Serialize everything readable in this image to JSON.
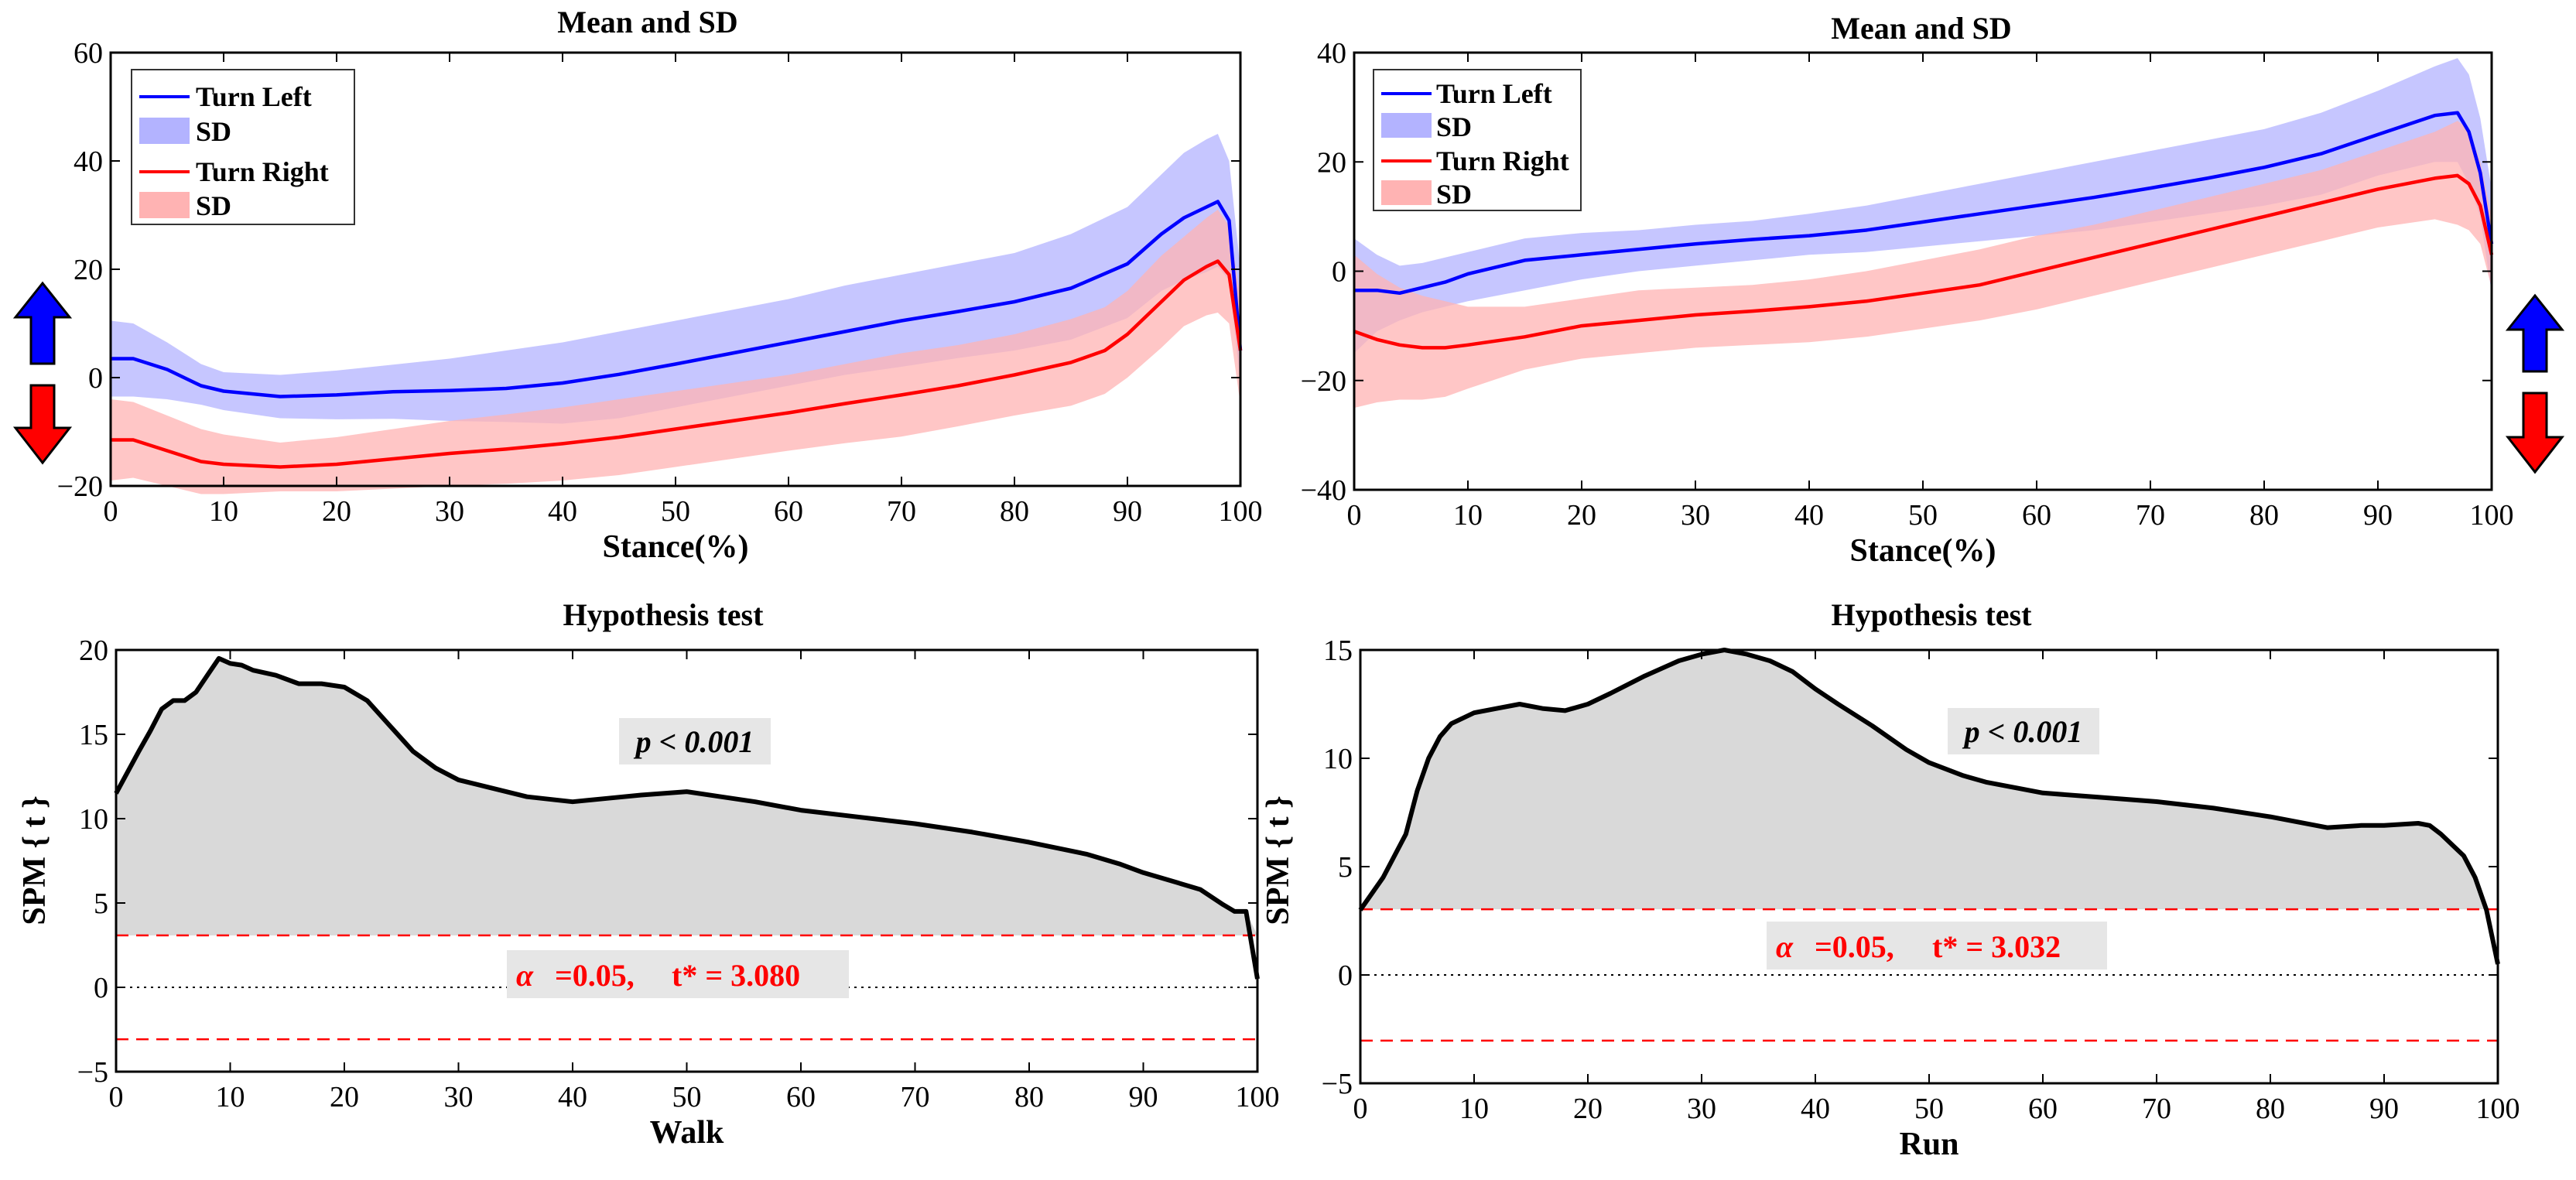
{
  "chart_data": [
    {
      "type": "line",
      "title": "Mean and SD",
      "xlabel": "Stance(%)",
      "ylabel": "",
      "xlim": [
        0,
        100
      ],
      "ylim": [
        -20,
        60
      ],
      "xticks": [
        0,
        10,
        20,
        30,
        40,
        50,
        60,
        70,
        80,
        90,
        100
      ],
      "yticks": [
        -20,
        0,
        20,
        40,
        60
      ],
      "legend": [
        "Turn Left",
        "SD",
        "Turn Right",
        "SD"
      ],
      "legend_position": "top-left",
      "direction_arrows": "left",
      "series": [
        {
          "name": "Turn Left",
          "color": "#0000ff",
          "band_color": "#b3b3ff",
          "x": [
            0,
            2,
            5,
            8,
            10,
            15,
            20,
            25,
            30,
            35,
            40,
            45,
            50,
            55,
            60,
            65,
            70,
            75,
            80,
            85,
            90,
            93,
            95,
            97,
            98,
            99,
            100
          ],
          "mean": [
            3.5,
            3.5,
            1.5,
            -1.5,
            -2.5,
            -3.5,
            -3.2,
            -2.6,
            -2.4,
            -2.0,
            -1.0,
            0.6,
            2.5,
            4.5,
            6.5,
            8.5,
            10.5,
            12.2,
            14.0,
            16.5,
            21.0,
            26.5,
            29.5,
            31.5,
            32.5,
            29.0,
            5.0
          ],
          "sd_upper": [
            10.5,
            10.0,
            6.5,
            2.5,
            1.0,
            0.5,
            1.3,
            2.4,
            3.5,
            5.0,
            6.5,
            8.5,
            10.5,
            12.5,
            14.5,
            17.0,
            19.0,
            21.0,
            23.0,
            26.5,
            31.5,
            37.5,
            41.5,
            44.0,
            45.0,
            40.0,
            20.0
          ],
          "sd_lower": [
            -3.5,
            -3.5,
            -4.0,
            -5.0,
            -6.0,
            -7.5,
            -7.7,
            -7.6,
            -8.0,
            -8.2,
            -8.5,
            -7.5,
            -5.5,
            -3.5,
            -1.5,
            0.5,
            2.0,
            3.6,
            5.0,
            7.0,
            11.0,
            16.0,
            18.0,
            19.5,
            20.5,
            18.0,
            -1.0
          ]
        },
        {
          "name": "Turn Right",
          "color": "#ff0000",
          "band_color": "#ffb3b3",
          "x": [
            0,
            2,
            5,
            8,
            10,
            15,
            20,
            25,
            30,
            35,
            40,
            45,
            50,
            55,
            60,
            65,
            70,
            75,
            80,
            85,
            88,
            90,
            93,
            95,
            97,
            98,
            99,
            100
          ],
          "mean": [
            -11.5,
            -11.5,
            -13.5,
            -15.5,
            -16.0,
            -16.5,
            -16.0,
            -15.0,
            -14.0,
            -13.2,
            -12.2,
            -11.0,
            -9.5,
            -8.0,
            -6.5,
            -4.8,
            -3.2,
            -1.5,
            0.5,
            2.8,
            5.0,
            8.0,
            14.0,
            18.0,
            20.5,
            21.5,
            19.0,
            5.0
          ],
          "sd_upper": [
            -4.0,
            -4.5,
            -7.0,
            -9.5,
            -10.5,
            -12.0,
            -11.0,
            -9.5,
            -8.0,
            -6.8,
            -5.5,
            -4.0,
            -2.5,
            -1.0,
            0.5,
            2.5,
            4.5,
            6.0,
            8.0,
            10.8,
            13.0,
            16.0,
            22.5,
            26.0,
            29.5,
            31.0,
            28.0,
            15.0
          ],
          "sd_lower": [
            -19.0,
            -18.5,
            -20.0,
            -21.5,
            -21.5,
            -21.0,
            -21.0,
            -20.5,
            -20.0,
            -19.6,
            -19.0,
            -18.0,
            -16.5,
            -15.0,
            -13.5,
            -12.1,
            -10.9,
            -9.0,
            -7.0,
            -5.2,
            -3.0,
            0.0,
            5.5,
            9.5,
            11.5,
            12.0,
            10.0,
            -5.0
          ]
        }
      ]
    },
    {
      "type": "line",
      "title": "Mean and SD",
      "xlabel": "Stance(%)",
      "ylabel": "",
      "xlim": [
        0,
        100
      ],
      "ylim": [
        -40,
        40
      ],
      "xticks": [
        0,
        10,
        20,
        30,
        40,
        50,
        60,
        70,
        80,
        90,
        100
      ],
      "yticks": [
        -40,
        -20,
        0,
        20,
        40
      ],
      "legend": [
        "Turn Left",
        "SD",
        "Turn Right",
        "SD"
      ],
      "legend_position": "top-left",
      "direction_arrows": "right",
      "series": [
        {
          "name": "Turn Left",
          "color": "#0000ff",
          "band_color": "#b3b3ff",
          "x": [
            0,
            2,
            4,
            6,
            8,
            10,
            15,
            20,
            25,
            30,
            35,
            40,
            45,
            50,
            55,
            60,
            65,
            70,
            75,
            80,
            85,
            90,
            95,
            97,
            98,
            99,
            100
          ],
          "mean": [
            -3.5,
            -3.5,
            -4.0,
            -3.0,
            -2.0,
            -0.5,
            2.0,
            3.0,
            4.0,
            5.0,
            5.8,
            6.5,
            7.5,
            9.0,
            10.5,
            12.0,
            13.5,
            15.2,
            17.0,
            19.0,
            21.5,
            25.0,
            28.5,
            29.0,
            25.5,
            18.0,
            5.0
          ],
          "sd_upper": [
            6.0,
            3.0,
            1.0,
            1.5,
            2.5,
            3.5,
            6.0,
            7.0,
            7.5,
            8.5,
            9.2,
            10.5,
            12.0,
            14.0,
            16.0,
            18.0,
            20.0,
            22.0,
            24.0,
            26.0,
            29.0,
            33.0,
            37.5,
            39.0,
            36.0,
            28.0,
            15.0
          ],
          "sd_lower": [
            -15.0,
            -11.0,
            -9.0,
            -7.5,
            -6.5,
            -5.5,
            -3.5,
            -1.5,
            0.0,
            1.0,
            2.0,
            3.0,
            3.5,
            4.5,
            5.5,
            6.5,
            7.5,
            9.0,
            10.5,
            12.0,
            14.0,
            17.5,
            20.0,
            20.0,
            16.0,
            10.0,
            -4.0
          ]
        },
        {
          "name": "Turn Right",
          "color": "#ff0000",
          "band_color": "#ffb3b3",
          "x": [
            0,
            2,
            4,
            6,
            8,
            10,
            15,
            20,
            25,
            30,
            35,
            40,
            45,
            50,
            55,
            60,
            65,
            70,
            75,
            80,
            85,
            90,
            95,
            97,
            98,
            99,
            100
          ],
          "mean": [
            -11.0,
            -12.5,
            -13.5,
            -14.0,
            -14.0,
            -13.5,
            -12.0,
            -10.0,
            -9.0,
            -8.0,
            -7.3,
            -6.5,
            -5.5,
            -4.0,
            -2.5,
            0.0,
            2.5,
            5.0,
            7.5,
            10.0,
            12.5,
            15.0,
            17.0,
            17.5,
            16.0,
            12.0,
            3.0
          ],
          "sd_upper": [
            3.0,
            -0.5,
            -3.0,
            -4.5,
            -5.5,
            -6.5,
            -6.5,
            -5.0,
            -3.5,
            -3.0,
            -2.5,
            -1.5,
            0.0,
            2.0,
            4.0,
            6.5,
            8.5,
            11.0,
            13.5,
            16.0,
            18.5,
            22.0,
            25.5,
            27.5,
            26.0,
            20.0,
            10.0
          ],
          "sd_lower": [
            -25.0,
            -24.0,
            -23.5,
            -23.5,
            -23.0,
            -21.5,
            -18.0,
            -16.0,
            -15.0,
            -14.0,
            -13.5,
            -13.0,
            -12.0,
            -10.5,
            -9.0,
            -7.0,
            -4.5,
            -2.0,
            0.5,
            3.0,
            5.5,
            8.0,
            9.5,
            8.5,
            7.5,
            5.0,
            -3.0
          ]
        }
      ]
    },
    {
      "type": "area",
      "title": "Hypothesis test",
      "xlabel": "Walk",
      "ylabel": "SPM { t }",
      "xlim": [
        0,
        100
      ],
      "ylim": [
        -5,
        20
      ],
      "xticks": [
        0,
        10,
        20,
        30,
        40,
        50,
        60,
        70,
        80,
        90,
        100
      ],
      "yticks": [
        -5,
        0,
        5,
        10,
        15,
        20
      ],
      "threshold": 3.08,
      "p_text": "p < 0.001",
      "alpha_symbol": "α",
      "alpha_text": "=0.05,",
      "tstar_text": "t* = 3.080",
      "series": [
        {
          "name": "SPM{t}",
          "x": [
            0,
            2,
            3,
            4,
            5,
            6,
            7,
            8,
            9,
            10,
            11,
            12,
            14,
            16,
            18,
            20,
            22,
            24,
            26,
            28,
            30,
            33,
            36,
            40,
            43,
            46,
            50,
            53,
            56,
            60,
            65,
            70,
            75,
            80,
            85,
            88,
            90,
            93,
            95,
            97,
            98,
            99,
            100
          ],
          "y": [
            11.5,
            14.0,
            15.2,
            16.5,
            17.0,
            17.0,
            17.5,
            18.5,
            19.5,
            19.2,
            19.1,
            18.8,
            18.5,
            18.0,
            18.0,
            17.8,
            17.0,
            15.5,
            14.0,
            13.0,
            12.3,
            11.8,
            11.3,
            11.0,
            11.2,
            11.4,
            11.6,
            11.3,
            11.0,
            10.5,
            10.1,
            9.7,
            9.2,
            8.6,
            7.9,
            7.3,
            6.8,
            6.2,
            5.8,
            4.9,
            4.5,
            4.5,
            0.5
          ]
        }
      ]
    },
    {
      "type": "area",
      "title": "Hypothesis test",
      "xlabel": "Run",
      "ylabel": "SPM { t }",
      "xlim": [
        0,
        100
      ],
      "ylim": [
        -5,
        15
      ],
      "xticks": [
        0,
        10,
        20,
        30,
        40,
        50,
        60,
        70,
        80,
        90,
        100
      ],
      "yticks": [
        -5,
        0,
        5,
        10,
        15
      ],
      "threshold": 3.032,
      "p_text": "p < 0.001",
      "alpha_symbol": "α",
      "alpha_text": "=0.05,",
      "tstar_text": "t* = 3.032",
      "series": [
        {
          "name": "SPM{t}",
          "x": [
            0,
            2,
            3,
            4,
            5,
            6,
            7,
            8,
            10,
            12,
            14,
            16,
            18,
            20,
            22,
            25,
            28,
            30,
            32,
            34,
            36,
            38,
            40,
            42,
            45,
            48,
            50,
            53,
            55,
            58,
            60,
            65,
            70,
            75,
            80,
            85,
            88,
            90,
            93,
            94,
            95,
            97,
            98,
            99,
            100
          ],
          "y": [
            3.0,
            4.5,
            5.5,
            6.5,
            8.5,
            10.0,
            11.0,
            11.6,
            12.1,
            12.3,
            12.5,
            12.3,
            12.2,
            12.5,
            13.0,
            13.8,
            14.5,
            14.8,
            15.0,
            14.8,
            14.5,
            14.0,
            13.2,
            12.5,
            11.5,
            10.4,
            9.8,
            9.2,
            8.9,
            8.6,
            8.4,
            8.2,
            8.0,
            7.7,
            7.3,
            6.8,
            6.9,
            6.9,
            7.0,
            6.9,
            6.5,
            5.5,
            4.5,
            3.0,
            0.5
          ]
        }
      ]
    }
  ]
}
